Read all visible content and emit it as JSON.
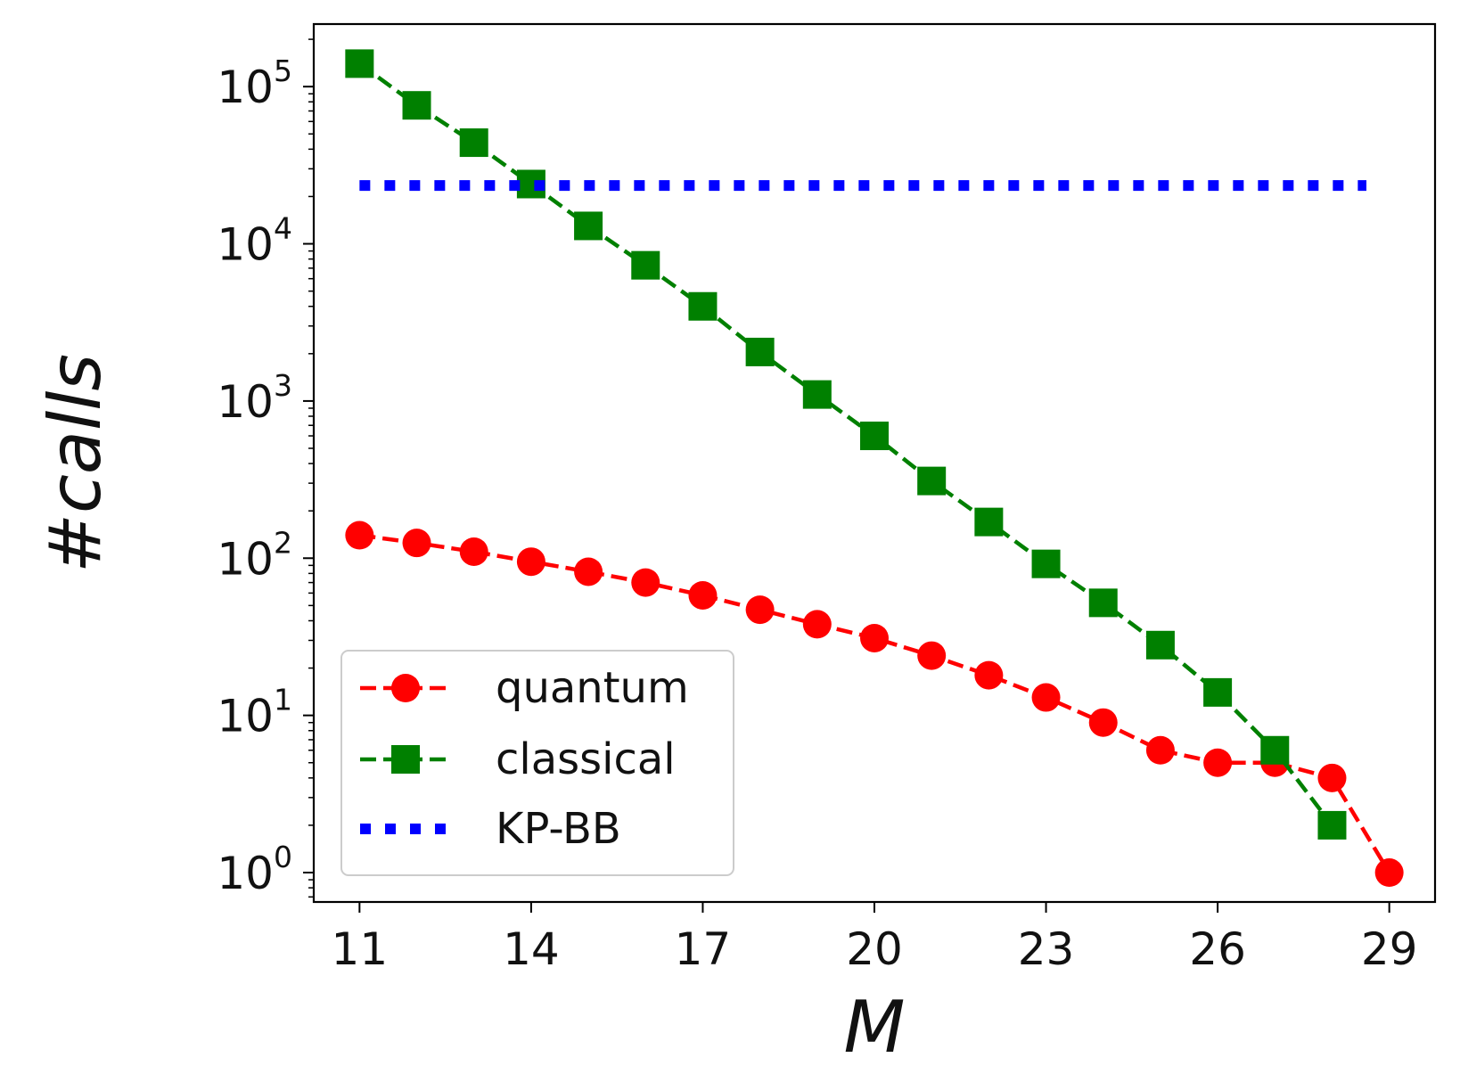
{
  "chart_data": {
    "type": "line",
    "title": "",
    "xlabel": "M",
    "ylabel": "#calls",
    "yscale": "log",
    "xlim": [
      10.2,
      29.8
    ],
    "ylim": [
      0.65,
      250000
    ],
    "xticks": [
      {
        "value": 11,
        "label": "11"
      },
      {
        "value": 14,
        "label": "14"
      },
      {
        "value": 17,
        "label": "17"
      },
      {
        "value": 20,
        "label": "20"
      },
      {
        "value": 23,
        "label": "23"
      },
      {
        "value": 26,
        "label": "26"
      },
      {
        "value": 29,
        "label": "29"
      }
    ],
    "yticks": [
      {
        "value": 1,
        "base": "10",
        "exp": "0"
      },
      {
        "value": 10,
        "base": "10",
        "exp": "1"
      },
      {
        "value": 100,
        "base": "10",
        "exp": "2"
      },
      {
        "value": 1000,
        "base": "10",
        "exp": "3"
      },
      {
        "value": 10000,
        "base": "10",
        "exp": "4"
      },
      {
        "value": 100000,
        "base": "10",
        "exp": "5"
      }
    ],
    "legend_position": "lower-left",
    "series": [
      {
        "name": "quantum",
        "color": "#ff0000",
        "marker": "circle",
        "linestyle": "dashed",
        "x": [
          11,
          12,
          13,
          14,
          15,
          16,
          17,
          18,
          19,
          20,
          21,
          22,
          23,
          24,
          25,
          26,
          27,
          28,
          29
        ],
        "y": [
          140,
          125,
          110,
          95,
          82,
          70,
          58,
          47,
          38,
          31,
          24,
          18,
          13,
          9,
          6,
          5,
          5,
          4,
          1
        ]
      },
      {
        "name": "classical",
        "color": "#008000",
        "marker": "square",
        "linestyle": "dashed",
        "x": [
          11,
          12,
          13,
          14,
          15,
          16,
          17,
          18,
          19,
          20,
          21,
          22,
          23,
          24,
          25,
          26,
          27,
          28
        ],
        "y": [
          140000,
          76000,
          44000,
          24000,
          13000,
          7300,
          4000,
          2050,
          1100,
          600,
          310,
          170,
          92,
          52,
          28,
          14,
          6,
          2
        ]
      },
      {
        "name": "KP-BB",
        "color": "#0000ff",
        "marker": "none",
        "linestyle": "dotted",
        "x": [
          11,
          28.6
        ],
        "y": [
          23500,
          23500
        ]
      }
    ]
  }
}
